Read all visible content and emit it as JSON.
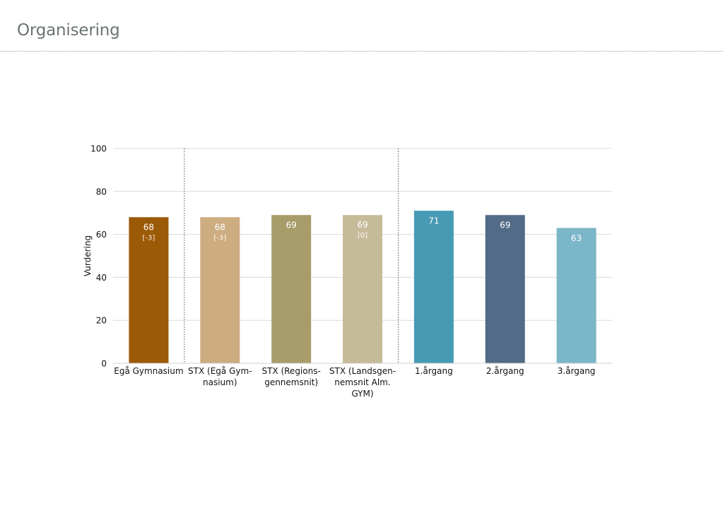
{
  "page": {
    "title": "Organisering"
  },
  "chart_data": {
    "type": "bar",
    "ylabel": "Vurdering",
    "ylim": [
      0,
      100
    ],
    "yticks": [
      0,
      20,
      40,
      60,
      80,
      100
    ],
    "grid": true,
    "categories": [
      "Egå Gymnasium",
      "STX (Egå Gym-|nasium)",
      "STX (Regions-|gennemsnit)",
      "STX (Landsgen-|nemsnit Alm.|GYM)",
      "1.årgang",
      "2.årgang",
      "3.årgang"
    ],
    "values": [
      68,
      68,
      69,
      69,
      71,
      69,
      63
    ],
    "data_labels": [
      "68",
      "68",
      "69",
      "69",
      "71",
      "69",
      "63"
    ],
    "diff_labels": [
      "[-3]",
      "[-3]",
      "",
      "[0]",
      "",
      "",
      ""
    ],
    "colors": [
      "#9b5a06",
      "#cdac80",
      "#a89c6a",
      "#c6bb99",
      "#479ab4",
      "#526b86",
      "#7cb6c9"
    ],
    "group_separators_after": [
      0,
      3
    ]
  }
}
